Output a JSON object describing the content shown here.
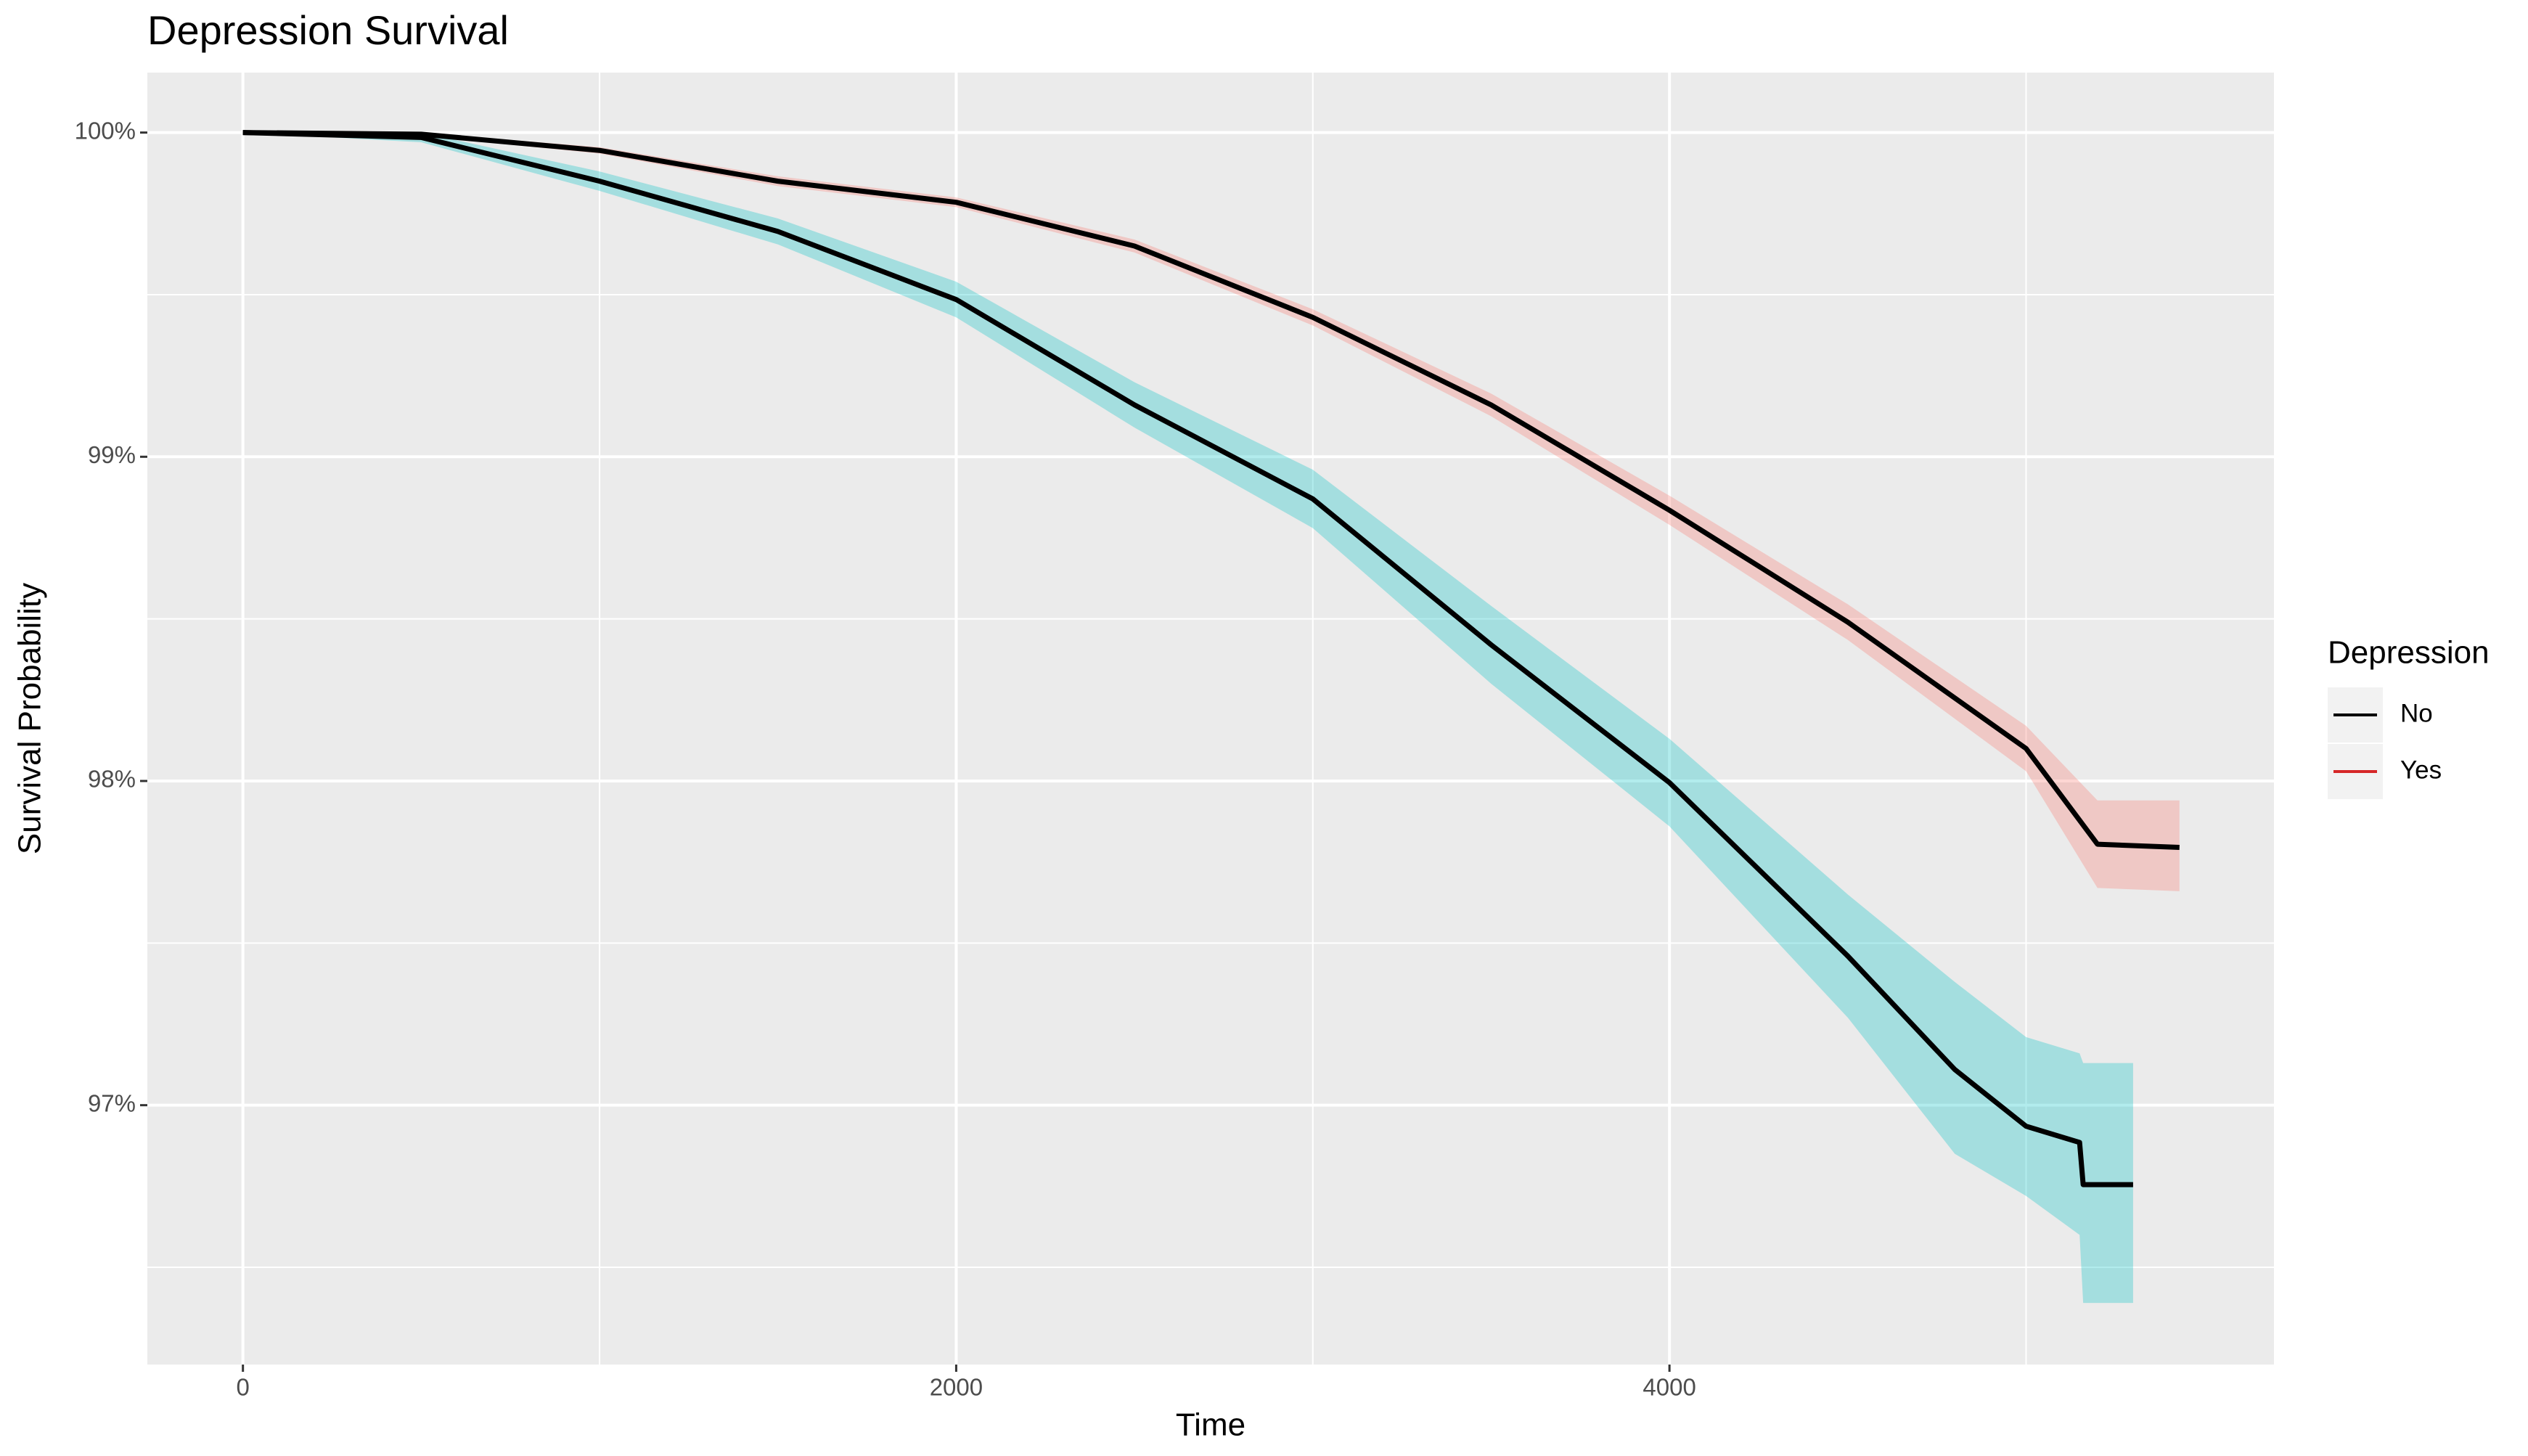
{
  "chart_data": {
    "type": "survival",
    "title": "Depression Survival",
    "x_label": "Time",
    "y_label": "Survival Probability",
    "legend_title": "Depression",
    "legend_position": "right",
    "grid": true,
    "panel_color": "#ebebeb",
    "xlim": [
      -268,
      5695
    ],
    "ylim": [
      96.2,
      100.185
    ],
    "xticks": [
      0,
      2000,
      4000
    ],
    "x_minor_ticks": [
      1000,
      3000,
      5000
    ],
    "yticks": [
      {
        "value": 97,
        "label": "97%"
      },
      {
        "value": 98,
        "label": "98%"
      },
      {
        "value": 99,
        "label": "99%"
      },
      {
        "value": 100,
        "label": "100%"
      }
    ],
    "y_minor_ticks": [
      96.5,
      97.5,
      98.5,
      99.5
    ],
    "series": [
      {
        "name": "No",
        "color": "#000000",
        "line_color": "#000000",
        "band_color": "#f8766d",
        "x": [
          0,
          500,
          1000,
          1500,
          2000,
          2500,
          3000,
          3500,
          4000,
          4500,
          5000,
          5200,
          5430
        ],
        "values": [
          100,
          99.995,
          99.945,
          99.85,
          99.785,
          99.65,
          99.43,
          99.16,
          98.835,
          98.49,
          98.1,
          97.805,
          97.795
        ],
        "lower": [
          100,
          99.99,
          99.935,
          99.835,
          99.77,
          99.63,
          99.405,
          99.125,
          98.79,
          98.435,
          98.03,
          97.67,
          97.66
        ],
        "upper": [
          100,
          100,
          99.955,
          99.865,
          99.8,
          99.67,
          99.455,
          99.195,
          98.88,
          98.545,
          98.17,
          97.94,
          97.94
        ]
      },
      {
        "name": "Yes",
        "color": "#d62728",
        "line_color": "#000000",
        "band_color": "#00bfc4",
        "x": [
          0,
          500,
          1000,
          1500,
          2000,
          2500,
          3000,
          3500,
          4000,
          4500,
          4800,
          5000,
          5150,
          5160,
          5300
        ],
        "values": [
          100,
          99.985,
          99.85,
          99.695,
          99.485,
          99.16,
          98.87,
          98.42,
          97.995,
          97.46,
          97.11,
          96.935,
          96.885,
          96.755,
          96.755
        ],
        "lower": [
          100,
          99.97,
          99.82,
          99.655,
          99.43,
          99.09,
          98.78,
          98.3,
          97.86,
          97.27,
          96.85,
          96.72,
          96.6,
          96.39,
          96.39
        ],
        "upper": [
          100,
          100,
          99.88,
          99.735,
          99.54,
          99.23,
          98.96,
          98.54,
          98.13,
          97.65,
          97.38,
          97.21,
          97.16,
          97.13,
          97.13
        ]
      }
    ]
  }
}
